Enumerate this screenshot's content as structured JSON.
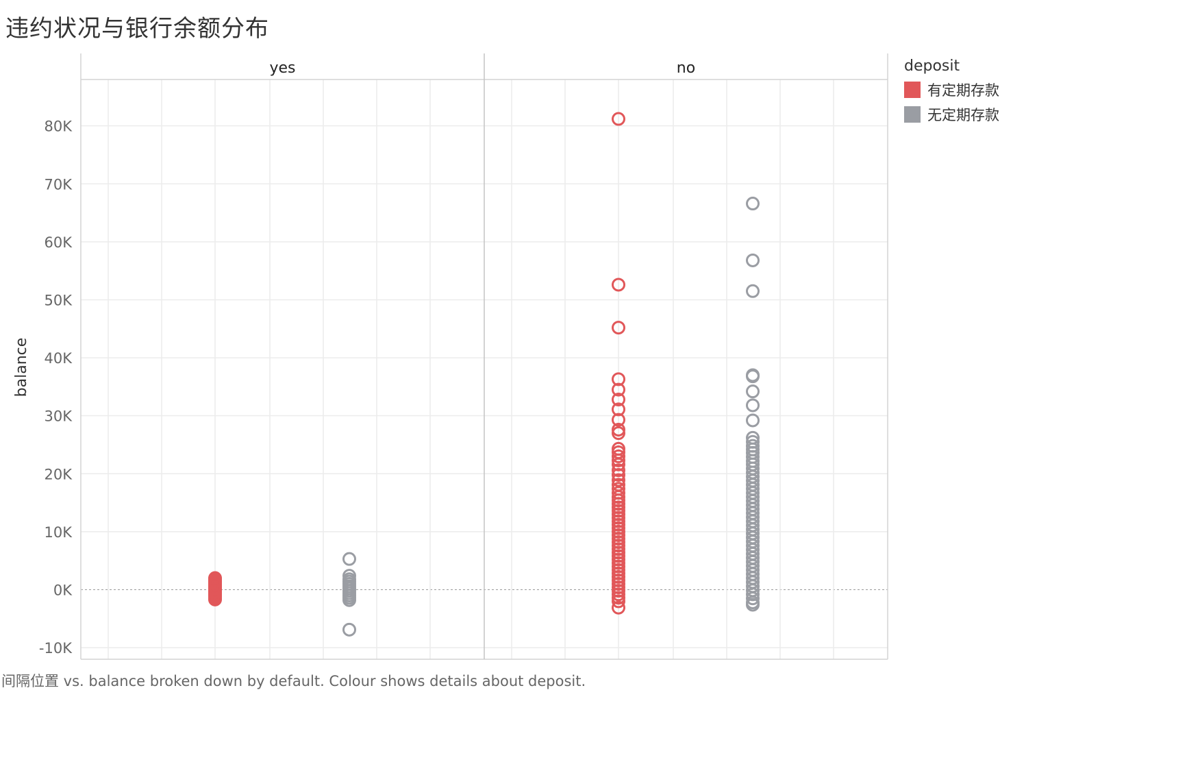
{
  "title": "违约状况与银行余额分布",
  "footer": "间隔位置 vs. balance broken down by default.  Colour shows details about deposit.",
  "colors": {
    "has_deposit": "#E15759",
    "no_deposit": "#9A9DA3"
  },
  "legend": {
    "title": "deposit",
    "items": [
      {
        "label": "有定期存款",
        "color": "#E15759"
      },
      {
        "label": "无定期存款",
        "color": "#9A9DA3"
      }
    ]
  },
  "chart_data": {
    "type": "scatter",
    "title": "违约状况与银行余额分布",
    "ylabel": "balance",
    "ylim": [
      -12000,
      88000
    ],
    "yticks": [
      -10000,
      0,
      10000,
      20000,
      30000,
      40000,
      50000,
      60000,
      70000,
      80000
    ],
    "ytick_labels": [
      "-10K",
      "0K",
      "10K",
      "20K",
      "30K",
      "40K",
      "50K",
      "60K",
      "70K",
      "80K"
    ],
    "grid": true,
    "legend_position": "right",
    "panels": [
      {
        "name": "yes",
        "series": [
          {
            "name": "有定期存款",
            "values": [
              2000,
              1800,
              1600,
              1400,
              1200,
              1000,
              800,
              600,
              400,
              200,
              0,
              -200,
              -400,
              -600,
              -800,
              -1000,
              -1200,
              -1500,
              -1700
            ]
          },
          {
            "name": "无定期存款",
            "values": [
              5300,
              2400,
              1800,
              1400,
              1000,
              600,
              200,
              -200,
              -600,
              -1000,
              -1400,
              -1800,
              -6900
            ]
          }
        ]
      },
      {
        "name": "no",
        "series": [
          {
            "name": "有定期存款",
            "values": [
              81200,
              52600,
              45200,
              36300,
              34500,
              32800,
              31100,
              29300,
              27600,
              27000,
              24300,
              23700,
              23000,
              22300,
              21600,
              20600,
              19800,
              18900,
              18100,
              17400,
              16700,
              16000,
              15400,
              14800,
              14200,
              13600,
              13000,
              12400,
              11800,
              11200,
              10600,
              10000,
              9400,
              8800,
              8200,
              7600,
              7000,
              6400,
              5800,
              5200,
              4600,
              4000,
              3400,
              2800,
              2200,
              1600,
              1000,
              400,
              -200,
              -800,
              -1400,
              -2000,
              -3100
            ]
          },
          {
            "name": "无定期存款",
            "values": [
              66600,
              56800,
              51500,
              37000,
              36800,
              34200,
              31800,
              29200,
              26200,
              25500,
              24800,
              24200,
              23600,
              22900,
              22200,
              21600,
              20900,
              20200,
              19500,
              18800,
              18100,
              17400,
              16700,
              16000,
              15300,
              14600,
              13900,
              13200,
              12500,
              11800,
              11100,
              10400,
              9700,
              9000,
              8300,
              7600,
              6900,
              6200,
              5500,
              4800,
              4100,
              3400,
              2700,
              2000,
              1300,
              600,
              -100,
              -800,
              -1500,
              -2200,
              -2600
            ]
          }
        ]
      }
    ]
  }
}
